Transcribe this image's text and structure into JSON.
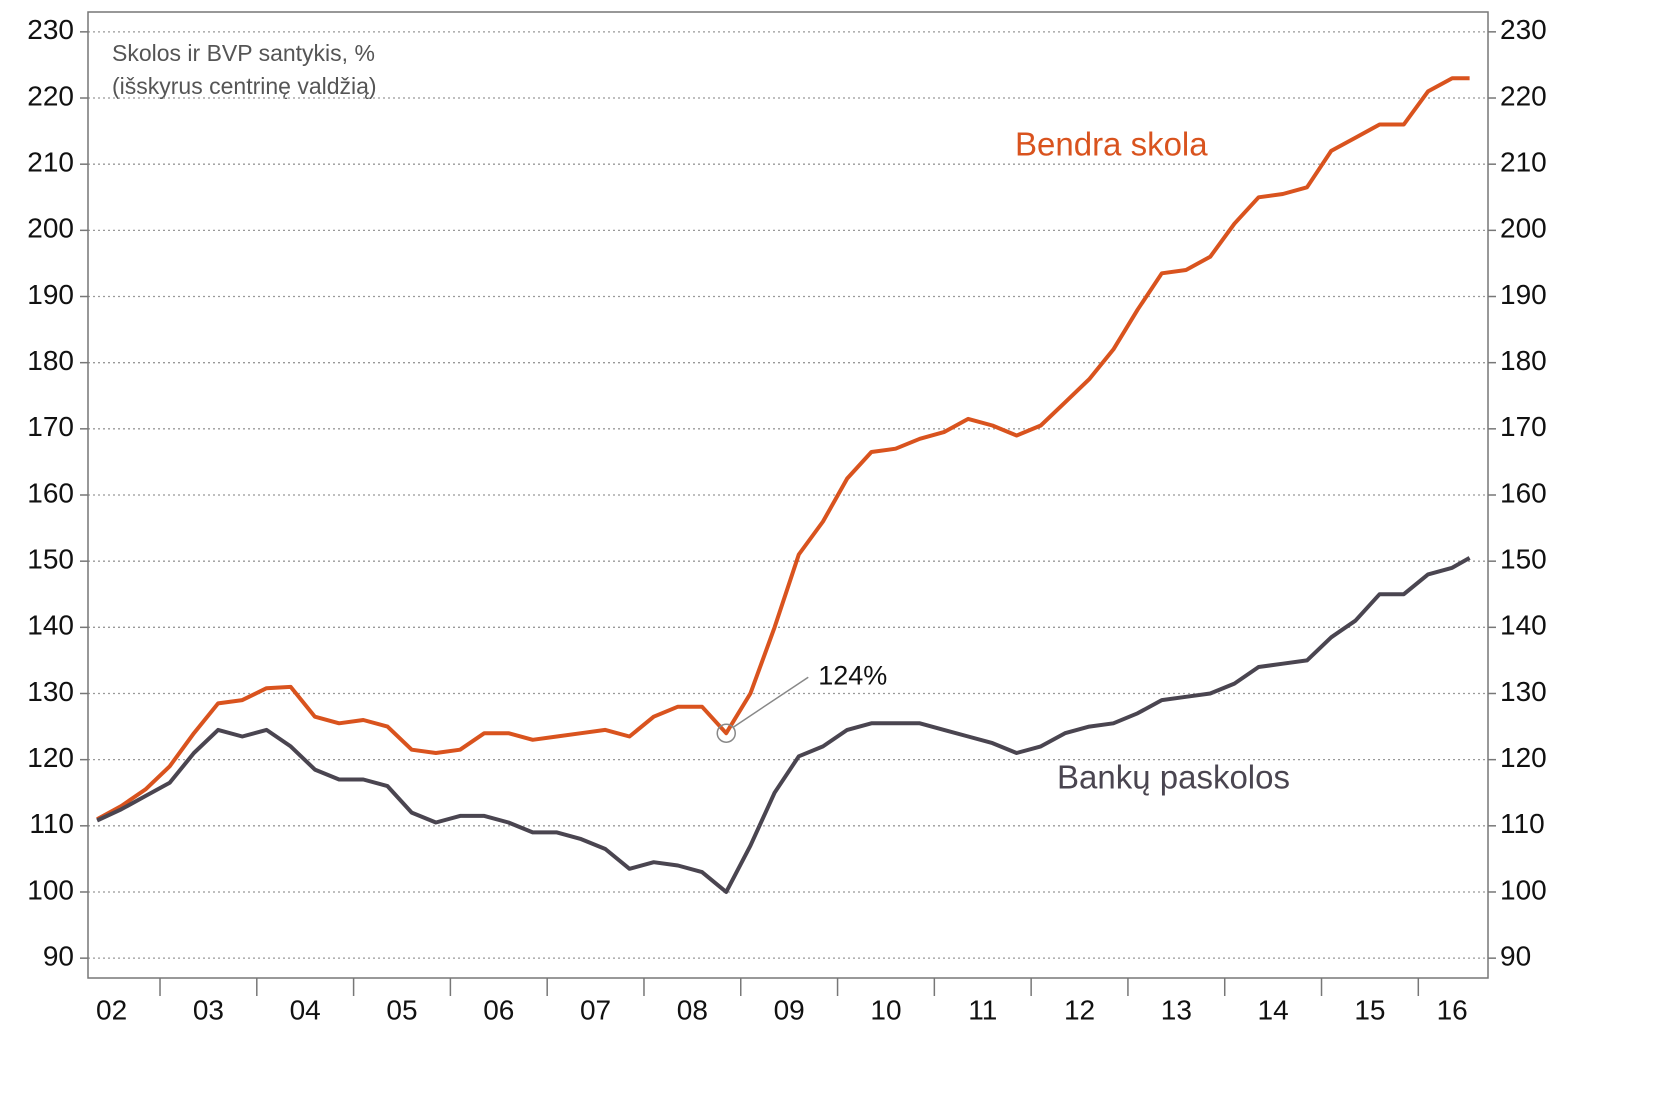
{
  "chart_data": {
    "type": "line",
    "title": [
      "Skolos ir BVP santykis, %",
      "(išskyrus centrinę valdžią)"
    ],
    "x": [
      2002.35,
      2002.6,
      2002.85,
      2003.1,
      2003.35,
      2003.6,
      2003.85,
      2004.1,
      2004.35,
      2004.6,
      2004.85,
      2005.1,
      2005.35,
      2005.6,
      2005.85,
      2006.1,
      2006.35,
      2006.6,
      2006.85,
      2007.1,
      2007.35,
      2007.6,
      2007.85,
      2008.1,
      2008.35,
      2008.6,
      2008.85,
      2009.1,
      2009.35,
      2009.6,
      2009.85,
      2010.1,
      2010.35,
      2010.6,
      2010.85,
      2011.1,
      2011.35,
      2011.6,
      2011.85,
      2012.1,
      2012.35,
      2012.6,
      2012.85,
      2013.1,
      2013.35,
      2013.6,
      2013.85,
      2014.1,
      2014.35,
      2014.6,
      2014.85,
      2015.1,
      2015.35,
      2015.6,
      2015.85,
      2016.1,
      2016.35,
      2016.53
    ],
    "series": [
      {
        "name": "Bendra skola",
        "color": "#d9531e",
        "values": [
          111,
          113,
          115.5,
          119,
          124,
          128.5,
          129,
          130.8,
          131,
          126.5,
          125.5,
          126,
          125,
          121.5,
          121,
          121.5,
          124,
          124,
          123,
          123.5,
          124,
          124.5,
          123.5,
          126.5,
          128,
          128,
          124,
          130,
          140,
          151,
          156,
          162.5,
          166.5,
          167,
          168.5,
          169.5,
          171.5,
          170.5,
          169,
          170.5,
          174,
          177.5,
          182,
          188,
          193.5,
          194,
          196,
          201,
          205,
          205.5,
          206.5,
          212,
          214,
          216,
          216,
          221,
          223,
          223
        ]
      },
      {
        "name": "Bankų paskolos",
        "color": "#4a4550",
        "values": [
          110.8,
          112.5,
          114.5,
          116.5,
          121,
          124.5,
          123.5,
          124.5,
          122,
          118.5,
          117,
          117,
          116,
          112,
          110.5,
          111.5,
          111.5,
          110.5,
          109,
          109,
          108,
          106.5,
          103.5,
          104.5,
          104,
          103,
          100,
          107,
          115,
          120.5,
          122,
          124.5,
          125.5,
          125.5,
          125.5,
          124.5,
          123.5,
          122.5,
          121,
          122,
          124,
          125,
          125.5,
          127,
          129,
          129.5,
          130,
          131.5,
          134,
          134.5,
          135,
          138.5,
          141,
          145,
          145,
          148,
          149,
          150.5
        ]
      }
    ],
    "annotation": {
      "text": "124%",
      "x": 2008.85,
      "y": 124
    },
    "xlim": [
      2002.256,
      2016.72
    ],
    "xticks": [
      {
        "value": 2002.5,
        "label": "02"
      },
      {
        "value": 2003.5,
        "label": "03"
      },
      {
        "value": 2004.5,
        "label": "04"
      },
      {
        "value": 2005.5,
        "label": "05"
      },
      {
        "value": 2006.5,
        "label": "06"
      },
      {
        "value": 2007.5,
        "label": "07"
      },
      {
        "value": 2008.5,
        "label": "08"
      },
      {
        "value": 2009.5,
        "label": "09"
      },
      {
        "value": 2010.5,
        "label": "10"
      },
      {
        "value": 2011.5,
        "label": "11"
      },
      {
        "value": 2012.5,
        "label": "12"
      },
      {
        "value": 2013.5,
        "label": "13"
      },
      {
        "value": 2014.5,
        "label": "14"
      },
      {
        "value": 2015.5,
        "label": "15"
      },
      {
        "value": 2016.35,
        "label": "16"
      }
    ],
    "ylim": [
      87,
      233
    ],
    "yticks": [
      90,
      100,
      110,
      120,
      130,
      140,
      150,
      160,
      170,
      180,
      190,
      200,
      210,
      220,
      230
    ],
    "grid": true
  }
}
